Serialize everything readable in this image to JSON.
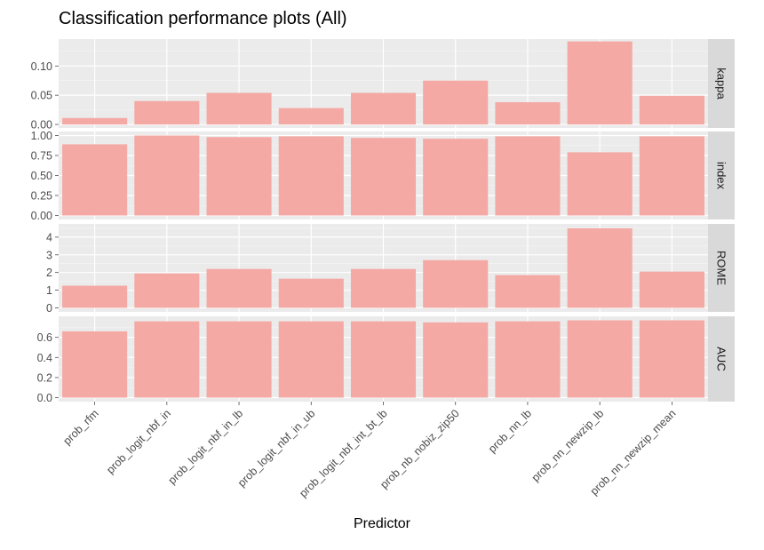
{
  "chart_data": {
    "type": "bar",
    "title": "Classification performance plots (All)",
    "xlabel": "Predictor",
    "ylabel": "",
    "categories": [
      "prob_rfm",
      "prob_logit_nbf_in",
      "prob_logit_nbf_in_lb",
      "prob_logit_nbf_in_ub",
      "prob_logit_nbf_int_bt_lb",
      "prob_nb_nobiz_zip50",
      "prob_nn_lb",
      "prob_nn_newzip_lb",
      "prob_nn_newzip_mean"
    ],
    "bar_color": "#f4a9a4",
    "panel_bg": "#ebebeb",
    "strip_bg": "#d9d9d9",
    "grid": true,
    "facets": [
      {
        "name": "kappa",
        "ylim": [
          -0.006,
          0.146
        ],
        "ticks": [
          0.0,
          0.05,
          0.1
        ],
        "tick_labels": [
          "0.00",
          "0.05",
          "0.10"
        ],
        "values": [
          0.011,
          0.04,
          0.054,
          0.028,
          0.054,
          0.075,
          0.038,
          0.142,
          0.049
        ]
      },
      {
        "name": "index",
        "ylim": [
          -0.05,
          1.05
        ],
        "ticks": [
          0.0,
          0.25,
          0.5,
          0.75,
          1.0
        ],
        "tick_labels": [
          "0.00",
          "0.25",
          "0.50",
          "0.75",
          "1.00"
        ],
        "values": [
          0.89,
          1.0,
          0.98,
          0.99,
          0.97,
          0.96,
          0.99,
          0.79,
          0.99
        ]
      },
      {
        "name": "ROME",
        "ylim": [
          -0.23,
          4.75
        ],
        "ticks": [
          0,
          1,
          2,
          3,
          4
        ],
        "tick_labels": [
          "0",
          "1",
          "2",
          "3",
          "4"
        ],
        "values": [
          1.25,
          1.95,
          2.2,
          1.65,
          2.2,
          2.7,
          1.85,
          4.5,
          2.05
        ]
      },
      {
        "name": "AUC",
        "ylim": [
          -0.04,
          0.81
        ],
        "ticks": [
          0.0,
          0.2,
          0.4,
          0.6
        ],
        "tick_labels": [
          "0.0",
          "0.2",
          "0.4",
          "0.6"
        ],
        "values": [
          0.66,
          0.76,
          0.76,
          0.76,
          0.76,
          0.75,
          0.76,
          0.77,
          0.77
        ]
      }
    ]
  }
}
